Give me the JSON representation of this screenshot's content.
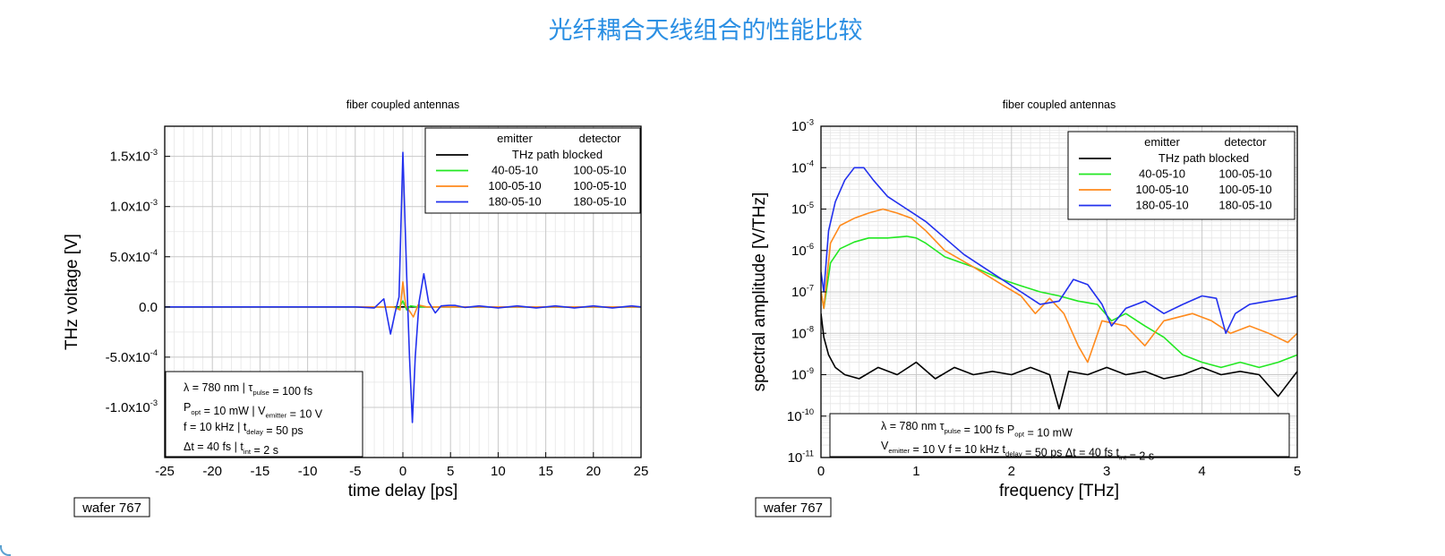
{
  "page": {
    "title": "光纤耦合天线组合的性能比较"
  },
  "colors": {
    "title": "#2b8fe3",
    "black": "#000000",
    "green": "#22e822",
    "orange": "#ff8a1c",
    "blue": "#2230ee",
    "grid_major": "#c8c8c8",
    "grid_minor": "#e6e6e6"
  },
  "chart_data": [
    {
      "type": "line",
      "title": "fiber coupled antennas",
      "xlabel": "time delay [ps]",
      "ylabel": "THz voltage [V]",
      "xlim": [
        -25,
        25
      ],
      "ylim": [
        -0.0015,
        0.0018
      ],
      "xticks": [
        -25,
        -20,
        -15,
        -10,
        -5,
        0,
        5,
        10,
        15,
        20,
        25
      ],
      "xtick_labels": [
        "-25",
        "-20",
        "-15",
        "-10",
        "-5",
        "0",
        "5",
        "10",
        "15",
        "20",
        "25"
      ],
      "yticks": [
        -0.001,
        -0.0005,
        0,
        0.0005,
        0.001,
        0.0015
      ],
      "ytick_labels": [
        {
          "m": "-1.0x10",
          "e": "-3"
        },
        {
          "m": "-5.0x10",
          "e": "-4"
        },
        {
          "m": "0.0",
          "e": ""
        },
        {
          "m": "5.0x10",
          "e": "-4"
        },
        {
          "m": "1.0x10",
          "e": "-3"
        },
        {
          "m": "1.5x10",
          "e": "-3"
        }
      ],
      "grid": true,
      "legend": {
        "placement": "top-right",
        "header": [
          "emitter",
          "detector"
        ],
        "entries": [
          {
            "color": "black",
            "text": "THz path blocked"
          },
          {
            "color": "green",
            "emitter": "40-05-10",
            "detector": "100-05-10"
          },
          {
            "color": "orange",
            "emitter": "100-05-10",
            "detector": "100-05-10"
          },
          {
            "color": "blue",
            "emitter": "180-05-10",
            "detector": "180-05-10"
          }
        ]
      },
      "info_box": {
        "placement": "bottom-left",
        "lines": [
          [
            {
              "t": "λ = 780 nm  |  τ"
            },
            {
              "t": "pulse",
              "sub": true
            },
            {
              "t": " = 100 fs"
            }
          ],
          [
            {
              "t": "P"
            },
            {
              "t": "opt",
              "sub": true
            },
            {
              "t": " = 10 mW  |  V"
            },
            {
              "t": "emitter",
              "sub": true
            },
            {
              "t": " = 10 V"
            }
          ],
          [
            {
              "t": "f = 10 kHz  |  t"
            },
            {
              "t": "delay",
              "sub": true
            },
            {
              "t": " = 50 ps"
            }
          ],
          [
            {
              "t": "Δt = 40 fs  |  t"
            },
            {
              "t": "int",
              "sub": true
            },
            {
              "t": " = 2 s"
            }
          ]
        ]
      },
      "tag": "wafer 767",
      "series": [
        {
          "color": "black",
          "x": [
            -25,
            -5,
            -2,
            0,
            2,
            4,
            6,
            25
          ],
          "y": [
            0,
            0,
            0,
            0,
            0,
            0,
            0,
            0
          ]
        },
        {
          "color": "green",
          "x": [
            -25,
            -5,
            -1,
            -0.4,
            0,
            0.4,
            0.8,
            1.5,
            2.5,
            4,
            25
          ],
          "y": [
            0,
            0,
            0,
            -1e-05,
            6e-05,
            -3e-05,
            1e-05,
            0,
            0,
            0,
            0
          ]
        },
        {
          "color": "orange",
          "x": [
            -25,
            -5,
            -1,
            -0.3,
            0,
            0.3,
            0.7,
            1.1,
            1.6,
            2.5,
            25
          ],
          "y": [
            0,
            0,
            0,
            -3e-05,
            0.00025,
            1e-05,
            -4e-05,
            -0.0001,
            2e-05,
            0,
            0
          ]
        },
        {
          "color": "blue",
          "x": [
            -25,
            -5,
            -3,
            -2,
            -1.3,
            -0.8,
            -0.4,
            0,
            0.4,
            0.7,
            1.0,
            1.3,
            1.7,
            2.2,
            2.7,
            3.4,
            4,
            4.8,
            5.5,
            6.5,
            8,
            10,
            12,
            14,
            16,
            18,
            20,
            22,
            24,
            25
          ],
          "y": [
            0,
            0,
            -1e-05,
            8e-05,
            -0.00027,
            -5e-05,
            0.0001,
            0.00154,
            0.0003,
            -0.0005,
            -0.00115,
            -0.0005,
            5e-05,
            0.00033,
            5e-05,
            -6e-05,
            1e-05,
            1.5e-05,
            1.5e-05,
            -5e-06,
            1e-05,
            -1e-05,
            1e-05,
            -1e-05,
            1e-05,
            -1e-05,
            1e-05,
            -1e-05,
            1e-05,
            0
          ]
        }
      ]
    },
    {
      "type": "line",
      "title": "fiber coupled antennas",
      "xlabel": "frequency [THz]",
      "ylabel": "spectral amplitude [V/THz]",
      "xlim": [
        0,
        5
      ],
      "ylim": [
        1e-11,
        0.001
      ],
      "yscale": "log",
      "xticks": [
        0,
        1,
        2,
        3,
        4,
        5
      ],
      "xtick_labels": [
        "0",
        "1",
        "2",
        "3",
        "4",
        "5"
      ],
      "yticks": [
        1e-11,
        1e-10,
        1e-09,
        1e-08,
        1e-07,
        1e-06,
        1e-05,
        0.0001,
        0.001
      ],
      "ytick_labels": [
        {
          "m": "10",
          "e": "-11"
        },
        {
          "m": "10",
          "e": "-10"
        },
        {
          "m": "10",
          "e": "-9"
        },
        {
          "m": "10",
          "e": "-8"
        },
        {
          "m": "10",
          "e": "-7"
        },
        {
          "m": "10",
          "e": "-6"
        },
        {
          "m": "10",
          "e": "-5"
        },
        {
          "m": "10",
          "e": "-4"
        },
        {
          "m": "10",
          "e": "-3"
        }
      ],
      "grid": true,
      "legend": {
        "placement": "top-right",
        "header": [
          "emitter",
          "detector"
        ],
        "entries": [
          {
            "color": "black",
            "text": "THz path blocked"
          },
          {
            "color": "green",
            "emitter": "40-05-10",
            "detector": "100-05-10"
          },
          {
            "color": "orange",
            "emitter": "100-05-10",
            "detector": "100-05-10"
          },
          {
            "color": "blue",
            "emitter": "180-05-10",
            "detector": "180-05-10"
          }
        ]
      },
      "info_box": {
        "placement": "bottom",
        "lines": [
          [
            {
              "t": "λ = 780 nm      τ"
            },
            {
              "t": "pulse",
              "sub": true
            },
            {
              "t": " = 100 fs      P"
            },
            {
              "t": "opt",
              "sub": true
            },
            {
              "t": " = 10 mW"
            }
          ],
          [
            {
              "t": "V"
            },
            {
              "t": "emitter",
              "sub": true
            },
            {
              "t": " = 10 V     f = 10 kHz      t"
            },
            {
              "t": "delay",
              "sub": true
            },
            {
              "t": " = 50 ps      Δt = 40 fs     t"
            },
            {
              "t": "int",
              "sub": true
            },
            {
              "t": " = 2 s"
            }
          ]
        ]
      },
      "tag": "wafer 767",
      "series": [
        {
          "color": "black",
          "x": [
            0,
            0.03,
            0.08,
            0.15,
            0.25,
            0.4,
            0.6,
            0.8,
            1.0,
            1.2,
            1.4,
            1.6,
            1.8,
            2.0,
            2.2,
            2.4,
            2.5,
            2.6,
            2.8,
            3.0,
            3.2,
            3.4,
            3.6,
            3.8,
            4.0,
            4.2,
            4.4,
            4.6,
            4.8,
            5.0
          ],
          "y": [
            3e-08,
            8e-09,
            3e-09,
            1.5e-09,
            1e-09,
            8e-10,
            1.5e-09,
            1e-09,
            2e-09,
            8e-10,
            1.5e-09,
            1e-09,
            1.2e-09,
            1e-09,
            1.5e-09,
            1e-09,
            1.5e-10,
            1.2e-09,
            1e-09,
            1.5e-09,
            1e-09,
            1.2e-09,
            8e-10,
            1e-09,
            1.5e-09,
            1e-09,
            1.2e-09,
            1e-09,
            3e-10,
            1.2e-09
          ]
        },
        {
          "color": "green",
          "x": [
            0,
            0.03,
            0.1,
            0.2,
            0.35,
            0.5,
            0.7,
            0.9,
            1.0,
            1.1,
            1.3,
            1.6,
            1.9,
            2.1,
            2.3,
            2.5,
            2.7,
            2.9,
            3.05,
            3.2,
            3.4,
            3.6,
            3.8,
            4.0,
            4.2,
            4.4,
            4.6,
            4.8,
            5.0
          ],
          "y": [
            1e-07,
            4e-08,
            5e-07,
            1.1e-06,
            1.6e-06,
            2e-06,
            2e-06,
            2.2e-06,
            2e-06,
            1.5e-06,
            7e-07,
            4e-07,
            2e-07,
            1.4e-07,
            1e-07,
            8e-08,
            6e-08,
            5e-08,
            2e-08,
            3e-08,
            1.5e-08,
            8e-09,
            3e-09,
            2e-09,
            1.5e-09,
            2e-09,
            1.5e-09,
            2e-09,
            3e-09
          ]
        },
        {
          "color": "orange",
          "x": [
            0,
            0.03,
            0.1,
            0.2,
            0.35,
            0.5,
            0.65,
            0.8,
            0.95,
            1.1,
            1.3,
            1.6,
            1.9,
            2.1,
            2.25,
            2.4,
            2.55,
            2.7,
            2.8,
            2.95,
            3.2,
            3.4,
            3.6,
            3.9,
            4.1,
            4.3,
            4.5,
            4.7,
            4.9,
            5.0
          ],
          "y": [
            1e-07,
            4e-08,
            1.5e-06,
            4e-06,
            6e-06,
            8e-06,
            1e-05,
            8e-06,
            6e-06,
            3e-06,
            1e-06,
            4e-07,
            1.5e-07,
            8e-08,
            3e-08,
            7e-08,
            3e-08,
            5e-09,
            2e-09,
            2e-08,
            1.5e-08,
            5e-09,
            2e-08,
            3e-08,
            2e-08,
            1e-08,
            1.5e-08,
            1e-08,
            6e-09,
            1e-08
          ]
        },
        {
          "color": "blue",
          "x": [
            0,
            0.03,
            0.08,
            0.15,
            0.25,
            0.35,
            0.45,
            0.55,
            0.7,
            0.9,
            1.1,
            1.3,
            1.5,
            1.7,
            1.9,
            2.1,
            2.3,
            2.5,
            2.65,
            2.8,
            2.95,
            3.05,
            3.2,
            3.4,
            3.6,
            3.8,
            4.0,
            4.15,
            4.25,
            4.35,
            4.5,
            4.7,
            4.9,
            5.0
          ],
          "y": [
            3e-07,
            1e-07,
            3e-06,
            1.5e-05,
            5e-05,
            0.0001,
            0.0001,
            5e-05,
            2e-05,
            1e-05,
            5e-06,
            2e-06,
            8e-07,
            4e-07,
            2e-07,
            1e-07,
            5e-08,
            6e-08,
            2e-07,
            1.5e-07,
            5e-08,
            1.5e-08,
            4e-08,
            6e-08,
            3e-08,
            5e-08,
            8e-08,
            7e-08,
            1e-08,
            3e-08,
            5e-08,
            6e-08,
            7e-08,
            8e-08
          ]
        }
      ]
    }
  ]
}
